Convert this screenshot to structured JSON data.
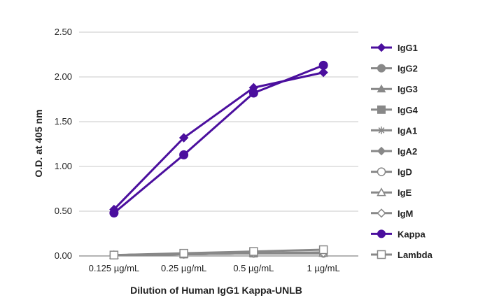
{
  "chart_data": {
    "type": "line",
    "categories": [
      "0.125 µg/mL",
      "0.25 µg/mL",
      "0.5 µg/mL",
      "1 µg/mL"
    ],
    "xlabel": "Dilution of Human IgG1 Kappa-UNLB",
    "ylabel": "O.D. at 405 nm",
    "ylim": [
      0,
      2.5
    ],
    "yticks": [
      "0.00",
      "0.50",
      "1.00",
      "1.50",
      "2.00",
      "2.50"
    ],
    "grid": true,
    "legend_position": "right",
    "series": [
      {
        "name": "IgG1",
        "values": [
          0.52,
          1.32,
          1.88,
          2.05
        ],
        "color": "#4b0f9e",
        "marker": "diamond"
      },
      {
        "name": "IgG2",
        "values": [
          0.01,
          0.02,
          0.03,
          0.03
        ],
        "color": "#888888",
        "marker": "circle"
      },
      {
        "name": "IgG3",
        "values": [
          0.01,
          0.02,
          0.03,
          0.03
        ],
        "color": "#888888",
        "marker": "triangle"
      },
      {
        "name": "IgG4",
        "values": [
          0.01,
          0.02,
          0.03,
          0.04
        ],
        "color": "#888888",
        "marker": "square"
      },
      {
        "name": "IgA1",
        "values": [
          0.01,
          0.02,
          0.03,
          0.03
        ],
        "color": "#888888",
        "marker": "star"
      },
      {
        "name": "IgA2",
        "values": [
          0.01,
          0.02,
          0.03,
          0.03
        ],
        "color": "#888888",
        "marker": "diamond"
      },
      {
        "name": "IgD",
        "values": [
          0.01,
          0.02,
          0.03,
          0.03
        ],
        "color": "#888888",
        "marker": "circle-open"
      },
      {
        "name": "IgE",
        "values": [
          0.01,
          0.02,
          0.03,
          0.03
        ],
        "color": "#888888",
        "marker": "triangle-open"
      },
      {
        "name": "IgM",
        "values": [
          0.01,
          0.02,
          0.03,
          0.03
        ],
        "color": "#888888",
        "marker": "diamond-open"
      },
      {
        "name": "Kappa",
        "values": [
          0.48,
          1.13,
          1.82,
          2.13
        ],
        "color": "#4b0f9e",
        "marker": "circle"
      },
      {
        "name": "Lambda",
        "values": [
          0.01,
          0.03,
          0.05,
          0.07
        ],
        "color": "#888888",
        "marker": "square-open"
      }
    ]
  }
}
